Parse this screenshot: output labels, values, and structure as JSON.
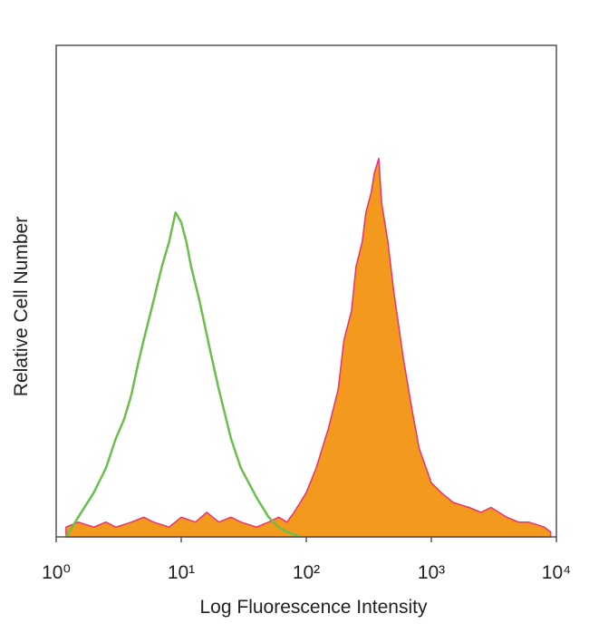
{
  "chart_data": {
    "type": "histogram-overlay",
    "xlabel": "Log Fluorescence Intensity",
    "ylabel": "Relative Cell Number",
    "xscale": "log",
    "xlim": [
      1,
      10000
    ],
    "ylim": [
      0,
      100
    ],
    "xticks": [
      {
        "value": 1,
        "label": "10⁰"
      },
      {
        "value": 10,
        "label": "10¹"
      },
      {
        "value": 100,
        "label": "10²"
      },
      {
        "value": 1000,
        "label": "10³"
      },
      {
        "value": 10000,
        "label": "10⁴"
      }
    ],
    "series": [
      {
        "color": "#f39a1e",
        "edge_color": "#e8336f",
        "filled": true,
        "x": [
          1.2,
          1.5,
          2,
          2.5,
          3,
          4,
          5,
          6,
          8,
          10,
          13,
          16,
          20,
          25,
          30,
          40,
          50,
          60,
          70,
          80,
          100,
          120,
          150,
          180,
          200,
          230,
          250,
          280,
          300,
          330,
          350,
          380,
          400,
          450,
          500,
          600,
          700,
          800,
          1000,
          1200,
          1500,
          2000,
          2500,
          3000,
          4000,
          5000,
          6000,
          8000,
          9000
        ],
        "values": [
          2,
          3,
          2,
          3,
          2,
          3,
          4,
          3,
          2,
          4,
          3,
          5,
          3,
          4,
          3,
          2,
          3,
          4,
          3,
          5,
          9,
          14,
          22,
          30,
          40,
          46,
          55,
          60,
          66,
          70,
          74,
          77,
          68,
          60,
          50,
          36,
          26,
          18,
          11,
          9,
          7,
          6,
          5,
          6,
          4,
          3,
          3,
          2,
          1
        ]
      },
      {
        "color": "#6abf4b",
        "filled": false,
        "x": [
          1.2,
          1.5,
          2,
          2.5,
          3,
          3.5,
          4,
          4.5,
          5,
          6,
          7,
          8,
          9,
          10,
          11,
          12,
          14,
          17,
          20,
          25,
          30,
          40,
          50,
          60,
          70,
          80,
          90
        ],
        "values": [
          0,
          4,
          9,
          14,
          20,
          24,
          29,
          35,
          40,
          48,
          55,
          60,
          66,
          64,
          60,
          55,
          48,
          38,
          30,
          20,
          14,
          8,
          4,
          2,
          1,
          0.5,
          0
        ]
      }
    ]
  }
}
